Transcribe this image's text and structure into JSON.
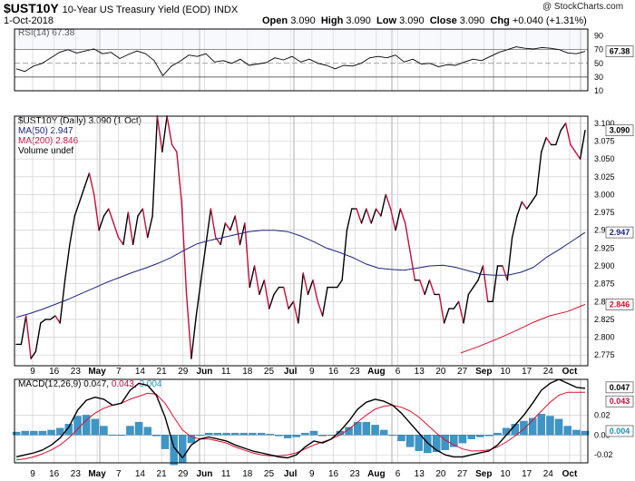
{
  "header": {
    "symbol": "$UST10Y",
    "name": "10-Year US Treasury Yield (EOD)",
    "exchange": "INDX",
    "date": "1-Oct-2018",
    "ohlc": [
      {
        "label": "Open",
        "value": "3.090"
      },
      {
        "label": "High",
        "value": "3.090"
      },
      {
        "label": "Low",
        "value": "3.090"
      },
      {
        "label": "Close",
        "value": "3.090"
      },
      {
        "label": "Chg",
        "value": "+0.040 (+1.31%)"
      }
    ],
    "credit": "@ StockCharts.com"
  },
  "rsi_panel": {
    "legend": "RSI(14) 67.38",
    "last_value": "67.38",
    "ticks": [
      "90",
      "70",
      "50",
      "30",
      "10"
    ]
  },
  "price_panel": {
    "legend_main": "$UST10Y (Daily) 3.090 (1 Oct)",
    "legend_ma50": "MA(50) 2.947",
    "legend_ma200": "MA(200) 2.846",
    "legend_volume": "Volume undef",
    "badges": {
      "price": "3.090",
      "ma50": "2.947",
      "ma200": "2.846"
    },
    "ticks": [
      "3.100",
      "3.075",
      "3.050",
      "3.025",
      "3.000",
      "2.975",
      "2.950",
      "2.925",
      "2.900",
      "2.875",
      "2.850",
      "2.825",
      "2.800",
      "2.775"
    ]
  },
  "macd_panel": {
    "legend_prefix": "MACD(12,26,9)",
    "macd_value": "0.047",
    "signal_value": "0.043",
    "hist_value": "0.004",
    "badges": {
      "macd": "0.047",
      "signal": "0.043",
      "hist": "0.004"
    },
    "ticks": [
      "0.02",
      "0.00",
      "-0.02"
    ]
  },
  "x_axis": {
    "labels": [
      {
        "text": "9",
        "bold": false
      },
      {
        "text": "16",
        "bold": false
      },
      {
        "text": "23",
        "bold": false
      },
      {
        "text": "May",
        "bold": true
      },
      {
        "text": "7",
        "bold": false
      },
      {
        "text": "14",
        "bold": false
      },
      {
        "text": "21",
        "bold": false
      },
      {
        "text": "29",
        "bold": false
      },
      {
        "text": "Jun",
        "bold": true
      },
      {
        "text": "11",
        "bold": false
      },
      {
        "text": "18",
        "bold": false
      },
      {
        "text": "25",
        "bold": false
      },
      {
        "text": "Jul",
        "bold": true
      },
      {
        "text": "9",
        "bold": false
      },
      {
        "text": "16",
        "bold": false
      },
      {
        "text": "23",
        "bold": false
      },
      {
        "text": "Aug",
        "bold": true
      },
      {
        "text": "6",
        "bold": false
      },
      {
        "text": "13",
        "bold": false
      },
      {
        "text": "20",
        "bold": false
      },
      {
        "text": "27",
        "bold": false
      },
      {
        "text": "Sep",
        "bold": true
      },
      {
        "text": "10",
        "bold": false
      },
      {
        "text": "17",
        "bold": false
      },
      {
        "text": "24",
        "bold": false
      },
      {
        "text": "Oct",
        "bold": true
      }
    ]
  },
  "colors": {
    "up": "#000000",
    "down": "#c40d3c",
    "ma50": "#1a237e",
    "ma200": "#d8102e",
    "hist": "#3c96c8",
    "grid": "#c8c8c8"
  },
  "chart_data": [
    {
      "type": "line",
      "title": "RSI(14)",
      "ylim": [
        10,
        100
      ],
      "reference_lines": [
        70,
        50,
        30
      ],
      "series": [
        {
          "name": "RSI(14)",
          "values": [
            42,
            38,
            46,
            50,
            58,
            66,
            70,
            65,
            68,
            71,
            64,
            66,
            57,
            63,
            68,
            64,
            54,
            32,
            46,
            53,
            62,
            60,
            64,
            52,
            54,
            50,
            56,
            47,
            49,
            51,
            58,
            55,
            60,
            52,
            56,
            50,
            47,
            42,
            47,
            46,
            50,
            58,
            60,
            58,
            62,
            52,
            56,
            49,
            50,
            45,
            48,
            47,
            52,
            56,
            54,
            60,
            66,
            70,
            74,
            72,
            71,
            73,
            72,
            70,
            65,
            64,
            67.38
          ]
        }
      ]
    },
    {
      "type": "line",
      "title": "$UST10Y (Daily)",
      "ylim": [
        2.76,
        3.11
      ],
      "series": [
        {
          "name": "$UST10Y",
          "values": [
            2.79,
            2.79,
            2.83,
            2.77,
            2.78,
            2.82,
            2.825,
            2.825,
            2.83,
            2.82,
            2.88,
            2.93,
            2.97,
            2.99,
            3.01,
            3.03,
            3.0,
            2.95,
            2.97,
            2.98,
            2.96,
            2.94,
            2.93,
            2.975,
            2.93,
            2.97,
            2.98,
            2.94,
            2.97,
            3.11,
            3.06,
            3.11,
            3.07,
            3.06,
            2.99,
            2.86,
            2.77,
            2.83,
            2.88,
            2.93,
            2.98,
            2.94,
            2.93,
            2.96,
            2.95,
            2.97,
            2.93,
            2.96,
            2.87,
            2.9,
            2.86,
            2.88,
            2.84,
            2.86,
            2.87,
            2.87,
            2.84,
            2.85,
            2.82,
            2.89,
            2.86,
            2.88,
            2.85,
            2.83,
            2.87,
            2.87,
            2.87,
            2.88,
            2.95,
            2.98,
            2.98,
            2.96,
            2.98,
            2.96,
            2.98,
            2.97,
            3.0,
            2.98,
            2.95,
            2.98,
            2.96,
            2.92,
            2.88,
            2.88,
            2.86,
            2.88,
            2.86,
            2.86,
            2.82,
            2.84,
            2.84,
            2.85,
            2.82,
            2.86,
            2.87,
            2.88,
            2.9,
            2.85,
            2.85,
            2.9,
            2.9,
            2.88,
            2.94,
            2.97,
            2.99,
            2.98,
            2.99,
            3.0,
            3.06,
            3.08,
            3.07,
            3.07,
            3.09,
            3.1,
            3.07,
            3.06,
            3.05,
            3.09
          ]
        },
        {
          "name": "MA(50)",
          "values": [
            2.828,
            2.833,
            2.839,
            2.846,
            2.853,
            2.861,
            2.869,
            2.877,
            2.884,
            2.891,
            2.897,
            2.904,
            2.912,
            2.922,
            2.931,
            2.936,
            2.94,
            2.944,
            2.948,
            2.95,
            2.95,
            2.948,
            2.942,
            2.934,
            2.925,
            2.919,
            2.912,
            2.903,
            2.897,
            2.895,
            2.894,
            2.897,
            2.9,
            2.901,
            2.898,
            2.893,
            2.888,
            2.887,
            2.887,
            2.891,
            2.898,
            2.912,
            2.923,
            2.935,
            2.947
          ]
        },
        {
          "name": "MA(200)",
          "values": [
            2.778,
            2.787,
            2.797,
            2.808,
            2.82,
            2.83,
            2.836,
            2.846
          ]
        }
      ]
    },
    {
      "type": "line",
      "title": "MACD(12,26,9)",
      "ylim": [
        -0.028,
        0.056
      ],
      "series": [
        {
          "name": "MACD",
          "values": [
            -0.022,
            -0.02,
            -0.018,
            -0.015,
            -0.01,
            -0.003,
            0.008,
            0.025,
            0.035,
            0.038,
            0.036,
            0.03,
            0.032,
            0.045,
            0.052,
            0.05,
            0.04,
            0.018,
            -0.012,
            -0.023,
            -0.01,
            -0.004,
            -0.002,
            -0.004,
            -0.006,
            -0.01,
            -0.013,
            -0.016,
            -0.018,
            -0.02,
            -0.022,
            -0.023,
            -0.02,
            -0.012,
            -0.006,
            -0.008,
            -0.004,
            0.004,
            0.014,
            0.026,
            0.033,
            0.036,
            0.034,
            0.03,
            0.022,
            0.012,
            0.002,
            -0.008,
            -0.015,
            -0.02,
            -0.022,
            -0.022,
            -0.02,
            -0.018,
            -0.016,
            -0.01,
            0.0,
            0.01,
            0.02,
            0.032,
            0.045,
            0.052,
            0.056,
            0.052,
            0.048,
            0.047
          ]
        },
        {
          "name": "Signal",
          "values": [
            -0.025,
            -0.024,
            -0.022,
            -0.019,
            -0.015,
            -0.01,
            -0.003,
            0.006,
            0.015,
            0.022,
            0.027,
            0.03,
            0.032,
            0.036,
            0.039,
            0.042,
            0.041,
            0.032,
            0.018,
            0.005,
            -0.002,
            -0.004,
            -0.004,
            -0.006,
            -0.008,
            -0.012,
            -0.015,
            -0.018,
            -0.02,
            -0.021,
            -0.021,
            -0.02,
            -0.018,
            -0.014,
            -0.01,
            -0.007,
            -0.004,
            0.0,
            0.006,
            0.013,
            0.02,
            0.026,
            0.029,
            0.03,
            0.028,
            0.024,
            0.018,
            0.01,
            0.002,
            -0.005,
            -0.01,
            -0.014,
            -0.016,
            -0.016,
            -0.015,
            -0.012,
            -0.007,
            -0.001,
            0.006,
            0.015,
            0.024,
            0.033,
            0.04,
            0.043,
            0.043,
            0.043
          ]
        },
        {
          "name": "Histogram",
          "values": [
            0.003,
            0.004,
            0.004,
            0.004,
            0.005,
            0.007,
            0.011,
            0.019,
            0.02,
            0.016,
            0.009,
            0.0,
            0.0,
            0.009,
            0.013,
            0.008,
            -0.001,
            -0.014,
            -0.03,
            -0.028,
            -0.008,
            0.0,
            0.002,
            0.002,
            0.002,
            0.002,
            0.002,
            0.002,
            0.002,
            0.001,
            -0.001,
            -0.003,
            -0.002,
            0.002,
            0.004,
            -0.001,
            0.0,
            0.004,
            0.008,
            0.013,
            0.013,
            0.01,
            0.005,
            0.0,
            -0.006,
            -0.012,
            -0.016,
            -0.018,
            -0.017,
            -0.015,
            -0.012,
            -0.008,
            -0.004,
            -0.002,
            -0.001,
            0.002,
            0.007,
            0.011,
            0.014,
            0.017,
            0.021,
            0.019,
            0.016,
            0.009,
            0.005,
            0.004
          ]
        }
      ]
    }
  ]
}
